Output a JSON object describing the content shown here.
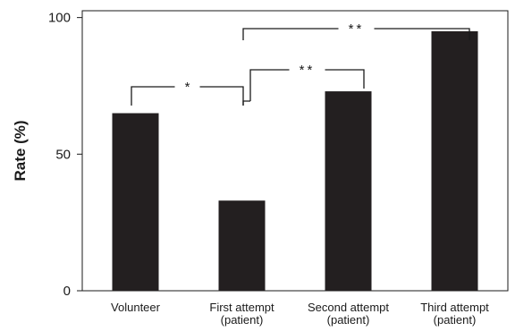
{
  "chart_data": {
    "type": "bar",
    "title": "",
    "xlabel": "",
    "ylabel": "Rate (%)",
    "ylim": [
      0,
      100
    ],
    "yticks": [
      0,
      50,
      100
    ],
    "grid": false,
    "categories": [
      [
        "Volunteer"
      ],
      [
        "First attempt",
        "(patient)"
      ],
      [
        "Second attempt",
        "(patient)"
      ],
      [
        "Third attempt",
        "(patient)"
      ]
    ],
    "values": [
      65,
      33,
      73,
      95
    ],
    "bar_color": "#231f20",
    "significance": [
      {
        "from": 0,
        "to": 1,
        "label": "*"
      },
      {
        "from": 1,
        "to": 2,
        "label": "**"
      },
      {
        "from": 1,
        "to": 3,
        "label": "**"
      }
    ]
  }
}
